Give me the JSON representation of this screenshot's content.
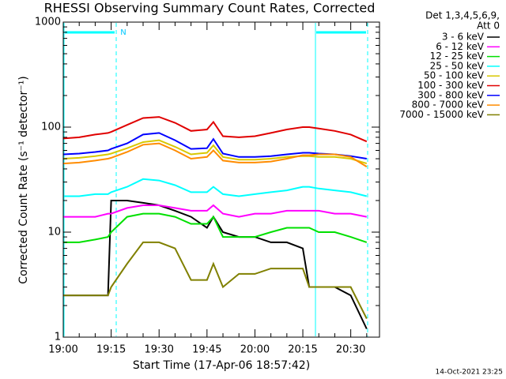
{
  "chart_data": {
    "type": "line",
    "title": "RHESSI Observing Summary Count Rates, Corrected",
    "x_label": "Start Time (17-Apr-06 18:57:42)",
    "y_label": "Corrected Count Rate (s⁻¹ detector⁻¹)",
    "legend_title": [
      "Det 1,3,4,5,6,9,",
      "Att 0"
    ],
    "annotation": "N",
    "footer": "14-Oct-2021 23:25",
    "log_y": true,
    "legend": "outside-right",
    "x": [
      1140,
      1145,
      1150,
      1154,
      1155,
      1160,
      1165,
      1170,
      1175,
      1180,
      1185,
      1187,
      1190,
      1195,
      1200,
      1205,
      1210,
      1215,
      1217,
      1220,
      1225,
      1230,
      1235
    ],
    "xlim": [
      1140,
      1239
    ],
    "xticks": [
      {
        "value": 1140,
        "label": "19:00"
      },
      {
        "value": 1155,
        "label": "19:15"
      },
      {
        "value": 1170,
        "label": "19:30"
      },
      {
        "value": 1185,
        "label": "19:45"
      },
      {
        "value": 1200,
        "label": "20:00"
      },
      {
        "value": 1215,
        "label": "20:15"
      },
      {
        "value": 1230,
        "label": "20:30"
      }
    ],
    "xticks_minor": [
      1145,
      1150,
      1160,
      1165,
      1175,
      1180,
      1190,
      1195,
      1205,
      1210,
      1220,
      1225,
      1235
    ],
    "ylim": [
      1,
      1000
    ],
    "yticks": [
      1,
      10,
      100,
      1000
    ],
    "yticks_minor": [
      2,
      3,
      4,
      5,
      6,
      7,
      8,
      9,
      20,
      30,
      40,
      50,
      60,
      70,
      80,
      90,
      200,
      300,
      400,
      500,
      600,
      700,
      800,
      900
    ],
    "series": [
      {
        "name": "3 - 6 keV",
        "color": "#000000",
        "values": [
          2.5,
          2.5,
          2.5,
          2.5,
          20,
          20,
          19,
          18,
          16,
          14,
          11,
          14,
          10,
          9,
          9,
          8,
          8,
          7,
          3,
          3,
          3,
          2.5,
          1.2
        ]
      },
      {
        "name": "6 - 12 keV",
        "color": "#ff00ff",
        "values": [
          14,
          14,
          14,
          15,
          15,
          17,
          18,
          18,
          17,
          16,
          16,
          18,
          15,
          14,
          15,
          15,
          16,
          16,
          16,
          16,
          15,
          15,
          14
        ]
      },
      {
        "name": "12 - 25 keV",
        "color": "#00e000",
        "values": [
          8,
          8,
          8.5,
          9,
          10,
          14,
          15,
          15,
          14,
          12,
          12,
          14,
          9,
          9,
          9,
          10,
          11,
          11,
          11,
          10,
          10,
          9,
          8
        ]
      },
      {
        "name": "25 - 50 keV",
        "color": "#00ffff",
        "values": [
          22,
          22,
          23,
          23,
          24,
          27,
          32,
          31,
          28,
          24,
          24,
          27,
          23,
          22,
          23,
          24,
          25,
          27,
          27,
          26,
          25,
          24,
          22
        ]
      },
      {
        "name": "50 - 100 keV",
        "color": "#d8c800",
        "values": [
          50,
          51,
          53,
          55,
          56,
          63,
          72,
          75,
          65,
          55,
          57,
          67,
          52,
          49,
          49,
          50,
          52,
          53,
          53,
          52,
          52,
          50,
          45
        ]
      },
      {
        "name": "100 - 300 keV",
        "color": "#e00000",
        "values": [
          78,
          80,
          85,
          88,
          90,
          105,
          122,
          125,
          110,
          92,
          95,
          112,
          82,
          80,
          82,
          88,
          95,
          100,
          100,
          97,
          92,
          85,
          73
        ]
      },
      {
        "name": "300 - 800 keV",
        "color": "#0000ff",
        "values": [
          55,
          56,
          58,
          60,
          62,
          70,
          85,
          88,
          75,
          62,
          63,
          77,
          56,
          52,
          52,
          53,
          55,
          57,
          57,
          56,
          55,
          53,
          50
        ]
      },
      {
        "name": "800 - 7000 keV",
        "color": "#ff8c00",
        "values": [
          45,
          46,
          48,
          50,
          51,
          58,
          68,
          70,
          60,
          50,
          52,
          60,
          48,
          46,
          46,
          47,
          50,
          54,
          54,
          55,
          55,
          52,
          42
        ]
      },
      {
        "name": "7000 - 15000 keV",
        "color": "#808000",
        "values": [
          2.5,
          2.5,
          2.5,
          2.5,
          3,
          5,
          8,
          8,
          7,
          3.5,
          3.5,
          5,
          3,
          4,
          4,
          4.5,
          4.5,
          4.5,
          3,
          3,
          3,
          3,
          1.5
        ]
      }
    ]
  }
}
